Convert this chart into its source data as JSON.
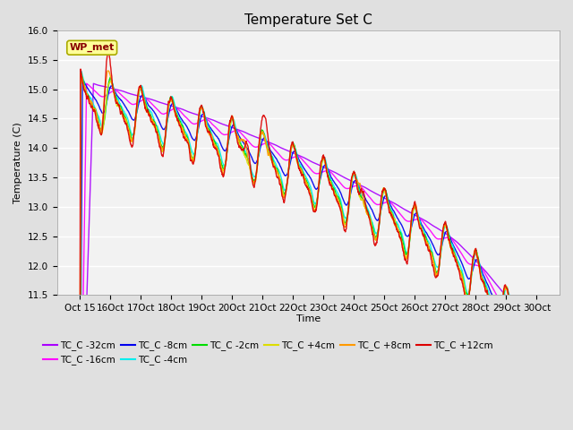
{
  "title": "Temperature Set C",
  "xlabel": "Time",
  "ylabel": "Temperature (C)",
  "ylim": [
    11.5,
    16.0
  ],
  "yticks": [
    11.5,
    12.0,
    12.5,
    13.0,
    13.5,
    14.0,
    14.5,
    15.0,
    15.5,
    16.0
  ],
  "xtick_labels": [
    "Oct 15",
    "Oct 16",
    "Oct 17",
    "Oct 18",
    "Oct 19",
    "Oct 20",
    "Oct 21",
    "Oct 22",
    "Oct 23",
    "Oct 24",
    "Oct 25",
    "Oct 26",
    "Oct 27",
    "Oct 28",
    "Oct 29",
    "Oct 30"
  ],
  "wp_met_label": "WP_met",
  "series": [
    {
      "label": "TC_C -32cm",
      "color": "#AA00FF",
      "lw": 1.0
    },
    {
      "label": "TC_C -16cm",
      "color": "#FF00FF",
      "lw": 1.0
    },
    {
      "label": "TC_C -8cm",
      "color": "#0000EE",
      "lw": 1.0
    },
    {
      "label": "TC_C -4cm",
      "color": "#00EEEE",
      "lw": 1.0
    },
    {
      "label": "TC_C -2cm",
      "color": "#00DD00",
      "lw": 1.0
    },
    {
      "label": "TC_C +4cm",
      "color": "#DDDD00",
      "lw": 1.0
    },
    {
      "label": "TC_C +8cm",
      "color": "#FF9900",
      "lw": 1.0
    },
    {
      "label": "TC_C +12cm",
      "color": "#DD0000",
      "lw": 1.0
    }
  ],
  "background_color": "#E0E0E0",
  "plot_bg_color": "#F2F2F2",
  "title_fontsize": 11,
  "label_fontsize": 8,
  "tick_fontsize": 7.5
}
